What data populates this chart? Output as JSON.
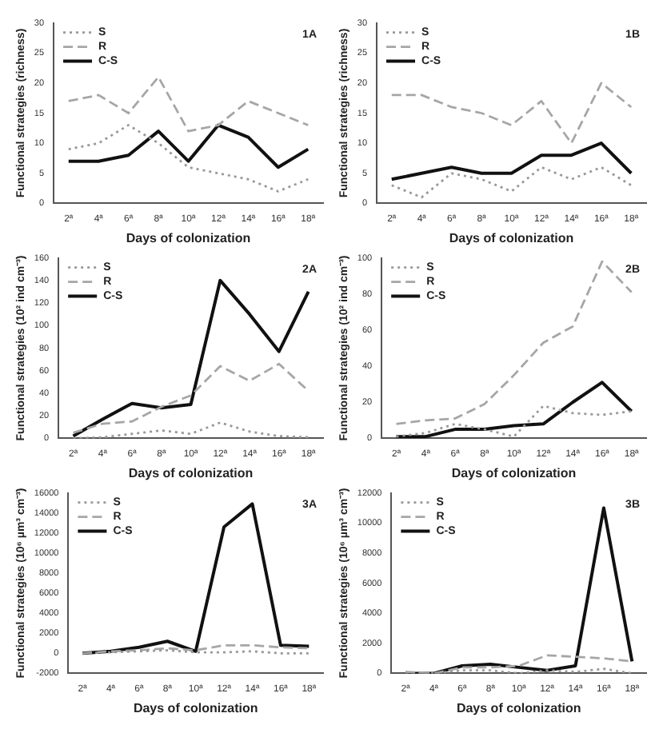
{
  "chart_data": [
    {
      "type": "line",
      "categories": [
        "2ª",
        "4ª",
        "6ª",
        "8ª",
        "10ª",
        "12ª",
        "14ª",
        "16ª",
        "18ª"
      ],
      "xlabel": "Days of colonization",
      "ylabel": "Functional strategies (richness)",
      "ylim": [
        0,
        30
      ],
      "yticks": [
        0,
        5,
        10,
        15,
        20,
        25,
        30
      ],
      "legend": "top left",
      "grid": false,
      "marker": "none",
      "annotations": [
        "1A"
      ],
      "series": [
        {
          "name": "S",
          "color": "#999999",
          "line_style": "dotted",
          "values": [
            9,
            10,
            13,
            10,
            6,
            5,
            4,
            2,
            4
          ]
        },
        {
          "name": "R",
          "color": "#a6a6a6",
          "line_style": "dashed",
          "values": [
            17,
            18,
            15,
            21,
            12,
            13,
            17,
            15,
            13
          ]
        },
        {
          "name": "C-S",
          "color": "#111111",
          "line_style": "solid",
          "values": [
            7,
            7,
            8,
            12,
            7,
            13,
            11,
            6,
            9
          ]
        }
      ]
    },
    {
      "type": "line",
      "categories": [
        "2ª",
        "4ª",
        "6ª",
        "8ª",
        "10ª",
        "12ª",
        "14ª",
        "16ª",
        "18ª"
      ],
      "xlabel": "Days of colonization",
      "ylabel": "Functional strategies (richness)",
      "ylim": [
        0,
        30
      ],
      "yticks": [
        0,
        5,
        10,
        15,
        20,
        25,
        30
      ],
      "legend": "top left",
      "grid": false,
      "marker": "none",
      "annotations": [
        "1B"
      ],
      "series": [
        {
          "name": "S",
          "color": "#999999",
          "line_style": "dotted",
          "values": [
            3,
            1,
            5,
            4,
            2,
            6,
            4,
            6,
            3
          ]
        },
        {
          "name": "R",
          "color": "#a6a6a6",
          "line_style": "dashed",
          "values": [
            18,
            18,
            16,
            15,
            13,
            17,
            10,
            20,
            16
          ]
        },
        {
          "name": "C-S",
          "color": "#111111",
          "line_style": "solid",
          "values": [
            4,
            5,
            6,
            5,
            5,
            8,
            8,
            10,
            5
          ]
        }
      ]
    },
    {
      "type": "line",
      "categories": [
        "2ª",
        "4ª",
        "6ª",
        "8ª",
        "10ª",
        "12ª",
        "14ª",
        "16ª",
        "18ª"
      ],
      "xlabel": "Days of colonization",
      "ylabel": "Functional strategies (10² ind cm⁻³)",
      "ylim": [
        0,
        160
      ],
      "yticks": [
        0,
        20,
        40,
        60,
        80,
        100,
        120,
        140,
        160
      ],
      "legend": "top left",
      "grid": false,
      "marker": "none",
      "annotations": [
        "2A"
      ],
      "series": [
        {
          "name": "S",
          "color": "#999999",
          "line_style": "dotted",
          "values": [
            0,
            1,
            4,
            7,
            4,
            14,
            6,
            2,
            1
          ]
        },
        {
          "name": "R",
          "color": "#a6a6a6",
          "line_style": "dashed",
          "values": [
            5,
            13,
            15,
            28,
            38,
            64,
            51,
            66,
            42
          ]
        },
        {
          "name": "C-S",
          "color": "#111111",
          "line_style": "solid",
          "values": [
            2,
            17,
            31,
            27,
            30,
            140,
            110,
            77,
            130
          ]
        }
      ]
    },
    {
      "type": "line",
      "categories": [
        "2ª",
        "4ª",
        "6ª",
        "8ª",
        "10ª",
        "12ª",
        "14ª",
        "16ª",
        "18ª"
      ],
      "xlabel": "Days of colonization",
      "ylabel": "Functional strategies (10² ind cm⁻³)",
      "ylim": [
        0,
        100
      ],
      "yticks": [
        0,
        20,
        40,
        60,
        80,
        100
      ],
      "legend": "top left",
      "grid": false,
      "marker": "none",
      "annotations": [
        "2B"
      ],
      "series": [
        {
          "name": "S",
          "color": "#999999",
          "line_style": "dotted",
          "values": [
            1,
            3,
            8,
            5,
            1,
            18,
            14,
            13,
            15
          ]
        },
        {
          "name": "R",
          "color": "#a6a6a6",
          "line_style": "dashed",
          "values": [
            8,
            10,
            11,
            19,
            35,
            53,
            62,
            98,
            81
          ]
        },
        {
          "name": "C-S",
          "color": "#111111",
          "line_style": "solid",
          "values": [
            1,
            1,
            5,
            5,
            7,
            8,
            20,
            31,
            15
          ]
        }
      ]
    },
    {
      "type": "line",
      "categories": [
        "2ª",
        "4ª",
        "6ª",
        "8ª",
        "10ª",
        "12ª",
        "14ª",
        "16ª",
        "18ª"
      ],
      "xlabel": "Days of colonization",
      "ylabel": "Functional strategies (10⁶ µm³ cm⁻³)",
      "ylim": [
        -2000,
        16000
      ],
      "yticks": [
        -2000,
        0,
        2000,
        4000,
        6000,
        8000,
        10000,
        12000,
        14000,
        16000
      ],
      "legend": "top left",
      "grid": false,
      "marker": "none",
      "annotations": [
        "3A"
      ],
      "series": [
        {
          "name": "S",
          "color": "#999999",
          "line_style": "dotted",
          "values": [
            0,
            100,
            200,
            300,
            100,
            100,
            200,
            0,
            0
          ]
        },
        {
          "name": "R",
          "color": "#a6a6a6",
          "line_style": "dashed",
          "values": [
            0,
            200,
            300,
            500,
            300,
            800,
            800,
            600,
            500
          ]
        },
        {
          "name": "C-S",
          "color": "#111111",
          "line_style": "solid",
          "values": [
            0,
            200,
            600,
            1200,
            200,
            12600,
            14900,
            800,
            700
          ]
        }
      ]
    },
    {
      "type": "line",
      "categories": [
        "2ª",
        "4ª",
        "6ª",
        "8ª",
        "10ª",
        "12ª",
        "14ª",
        "16ª",
        "18ª"
      ],
      "xlabel": "Days of colonization",
      "ylabel": "Functional strategies (10⁶ µm³ cm⁻³)",
      "ylim": [
        0,
        12000
      ],
      "yticks": [
        0,
        2000,
        4000,
        6000,
        8000,
        10000,
        12000
      ],
      "legend": "top left",
      "grid": false,
      "marker": "none",
      "annotations": [
        "3B"
      ],
      "series": [
        {
          "name": "S",
          "color": "#999999",
          "line_style": "dotted",
          "values": [
            0,
            0,
            200,
            200,
            0,
            200,
            100,
            300,
            0
          ]
        },
        {
          "name": "R",
          "color": "#a6a6a6",
          "line_style": "dashed",
          "values": [
            100,
            0,
            400,
            400,
            500,
            1200,
            1100,
            1000,
            800
          ]
        },
        {
          "name": "C-S",
          "color": "#111111",
          "line_style": "solid",
          "values": [
            0,
            0,
            500,
            600,
            400,
            200,
            500,
            11000,
            800
          ]
        }
      ]
    }
  ]
}
